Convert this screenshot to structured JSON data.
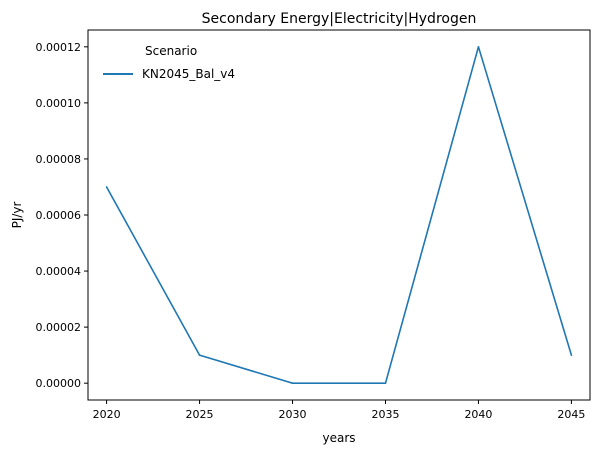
{
  "chart_data": {
    "type": "line",
    "title": "Secondary Energy|Electricity|Hydrogen",
    "xlabel": "years",
    "ylabel": "PJ/yr",
    "x": [
      2020,
      2025,
      2030,
      2035,
      2040,
      2045
    ],
    "series": [
      {
        "name": "KN2045_Bal_v4",
        "color": "#1f77b4",
        "values": [
          7e-05,
          1e-05,
          0.0,
          0.0,
          0.00012,
          1e-05
        ]
      }
    ],
    "xlim": [
      2019,
      2046
    ],
    "ylim": [
      -6e-06,
      0.000126
    ],
    "x_ticks": [
      2020,
      2025,
      2030,
      2035,
      2040,
      2045
    ],
    "x_tick_labels": [
      "2020",
      "2025",
      "2030",
      "2035",
      "2040",
      "2045"
    ],
    "y_ticks": [
      0.0,
      2e-05,
      4e-05,
      6e-05,
      8e-05,
      0.0001,
      0.00012
    ],
    "y_tick_labels": [
      "0.00000",
      "0.00002",
      "0.00004",
      "0.00006",
      "0.00008",
      "0.00010",
      "0.00012"
    ],
    "legend": {
      "title": "Scenario",
      "position": "upper-left"
    },
    "grid": false
  }
}
